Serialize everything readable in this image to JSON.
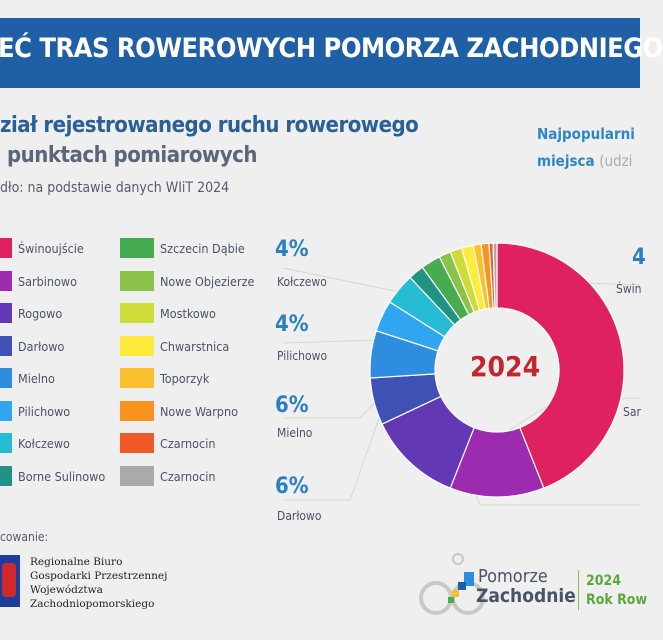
{
  "header": {
    "title": "EĆ TRAS ROWEROWYCH POMORZA ZACHODNIEGO"
  },
  "subtitle": {
    "line1": "ział rejestrowanego ruchu rowerowego",
    "line2": "punktach pomiarowych",
    "source": "dło: na podstawie danych WIiT 2024"
  },
  "right_heading": {
    "line1": "Najpopularni",
    "line2_bold": "miejsca",
    "line2_grey": "(udzi"
  },
  "chart_data": {
    "type": "pie",
    "center_label": "2024",
    "categories": [
      "Świnoujście",
      "Sarbinowo",
      "Rogowo",
      "Darłowo",
      "Mielno",
      "Pilichowo",
      "Kołczewo",
      "Borne Sulinowo",
      "Szczecin Dąbie",
      "Nowe Objezierze",
      "Mostkowo",
      "Chwarstnica",
      "Toporzyk",
      "Nowe Warpno",
      "Czarnocin",
      "Czarnocin"
    ],
    "values": [
      44,
      12,
      12,
      6,
      6,
      4,
      4,
      2,
      2.5,
      1.5,
      1.5,
      1.5,
      1,
      1,
      0.5,
      0.5
    ],
    "colors": [
      "#e0215f",
      "#9c2bb0",
      "#6238b5",
      "#3f51b5",
      "#2f8de0",
      "#2fa6ef",
      "#26bcd4",
      "#1f9485",
      "#47ac50",
      "#8bc34a",
      "#cddc39",
      "#ffeb3b",
      "#fbc02d",
      "#f7931e",
      "#f05a28",
      "#aaaaaa"
    ],
    "data_labels": [
      {
        "pct": "4",
        "name": "Świn"
      },
      {
        "pct": "",
        "name": "Sar"
      },
      {
        "pct": "4%",
        "name": "Kołczewo"
      },
      {
        "pct": "4%",
        "name": "Pilichowo"
      },
      {
        "pct": "6%",
        "name": "Mielno"
      },
      {
        "pct": "6%",
        "name": "Darłowo"
      }
    ],
    "legend_placement": "left"
  },
  "footer": {
    "credit_label": "cowanie:",
    "org": [
      "Regionalne Biuro",
      "Gospodarki Przestrzennej",
      "Województwa",
      "Zachodniopomorskiego"
    ],
    "brand": {
      "line1": "Pomorze",
      "line2": "Zachodnie",
      "year": "2024",
      "tag": "Rok Row"
    }
  }
}
